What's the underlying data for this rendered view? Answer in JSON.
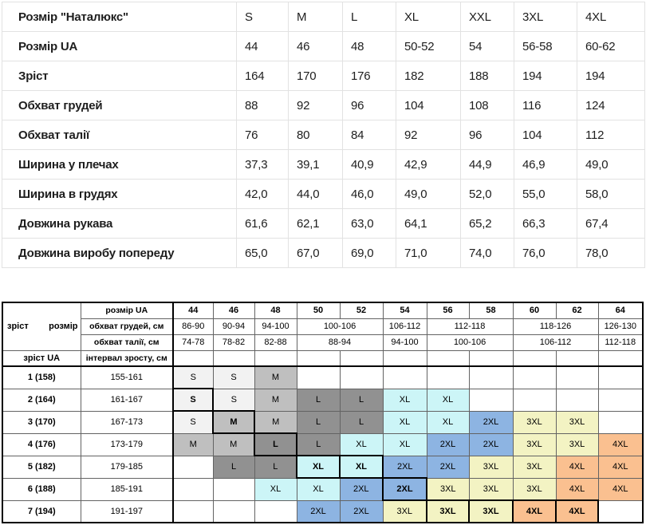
{
  "measurements_table": {
    "rows": [
      {
        "label": "Розмір \"Наталюкс\"",
        "values": [
          "S",
          "M",
          "L",
          "XL",
          "XXL",
          "3XL",
          "4XL"
        ]
      },
      {
        "label": "Розмір UA",
        "values": [
          "44",
          "46",
          "48",
          "50-52",
          "54",
          "56-58",
          "60-62"
        ]
      },
      {
        "label": "Зріст",
        "values": [
          "164",
          "170",
          "176",
          "182",
          "188",
          "194",
          "194"
        ]
      },
      {
        "label": "Обхват грудей",
        "values": [
          "88",
          "92",
          "96",
          "104",
          "108",
          "116",
          "124"
        ]
      },
      {
        "label": "Обхват талії",
        "values": [
          "76",
          "80",
          "84",
          "92",
          "96",
          "104",
          "112"
        ]
      },
      {
        "label": "Ширина у плечах",
        "values": [
          "37,3",
          "39,1",
          "40,9",
          "42,9",
          "44,9",
          "46,9",
          "49,0"
        ]
      },
      {
        "label": "Ширина в грудях",
        "values": [
          "42,0",
          "44,0",
          "46,0",
          "49,0",
          "52,0",
          "55,0",
          "58,0"
        ]
      },
      {
        "label": "Довжина рукава",
        "values": [
          "61,6",
          "62,1",
          "63,0",
          "64,1",
          "65,2",
          "66,3",
          "67,4"
        ]
      },
      {
        "label": "Довжина виробу попереду",
        "values": [
          "65,0",
          "67,0",
          "69,0",
          "71,0",
          "74,0",
          "76,0",
          "78,0"
        ]
      }
    ]
  },
  "size_chart": {
    "corner": {
      "height_label": "зріст",
      "size_label": "розмір"
    },
    "header": {
      "size_row_label": "розмір UA",
      "sizes": [
        "44",
        "46",
        "48",
        "50",
        "52",
        "54",
        "56",
        "58",
        "60",
        "62",
        "64"
      ],
      "chest_label": "обхват грудей, см",
      "chest_ranges": [
        "86-90",
        "90-94",
        "94-100",
        "100-106",
        "106-112",
        "112-118",
        "118-126",
        "126-130"
      ],
      "chest_spans": [
        1,
        1,
        1,
        2,
        1,
        2,
        2,
        1
      ],
      "waist_label": "обхват талії, см",
      "waist_ranges": [
        "74-78",
        "78-82",
        "82-88",
        "88-94",
        "94-100",
        "100-106",
        "106-112",
        "112-118"
      ],
      "waist_spans": [
        1,
        1,
        1,
        2,
        1,
        2,
        2,
        1
      ],
      "height_col_label": "зріст UA",
      "interval_col_label": "інтервал зросту, см"
    },
    "rows": [
      {
        "height": "1 (158)",
        "interval": "155-161",
        "cells": [
          "S",
          "S",
          "M",
          "",
          "",
          "",
          "",
          "",
          "",
          "",
          ""
        ],
        "key_cells": []
      },
      {
        "height": "2 (164)",
        "interval": "161-167",
        "cells": [
          "S",
          "S",
          "M",
          "L",
          "L",
          "XL",
          "XL",
          "",
          "",
          "",
          ""
        ],
        "key_cells": [
          0
        ]
      },
      {
        "height": "3 (170)",
        "interval": "167-173",
        "cells": [
          "S",
          "M",
          "M",
          "L",
          "L",
          "XL",
          "XL",
          "2XL",
          "3XL",
          "3XL",
          ""
        ],
        "key_cells": [
          1
        ]
      },
      {
        "height": "4 (176)",
        "interval": "173-179",
        "cells": [
          "M",
          "M",
          "L",
          "L",
          "XL",
          "XL",
          "2XL",
          "2XL",
          "3XL",
          "3XL",
          "4XL"
        ],
        "key_cells": [
          2
        ]
      },
      {
        "height": "5 (182)",
        "interval": "179-185",
        "cells": [
          "",
          "L",
          "L",
          "XL",
          "XL",
          "2XL",
          "2XL",
          "3XL",
          "3XL",
          "4XL",
          "4XL"
        ],
        "key_cells": [
          3,
          4
        ]
      },
      {
        "height": "6 (188)",
        "interval": "185-191",
        "cells": [
          "",
          "",
          "XL",
          "XL",
          "2XL",
          "2XL",
          "3XL",
          "3XL",
          "3XL",
          "4XL",
          "4XL"
        ],
        "key_cells": [
          5
        ]
      },
      {
        "height": "7 (194)",
        "interval": "191-197",
        "cells": [
          "",
          "",
          "",
          "2XL",
          "2XL",
          "3XL",
          "3XL",
          "3XL",
          "4XL",
          "4XL",
          ""
        ],
        "key_cells": [
          6,
          7,
          8,
          9
        ]
      }
    ],
    "size_colors": {
      "S": "#f2f2f2",
      "M": "#bfbfbf",
      "L": "#919191",
      "XL": "#ccf5f7",
      "2XL": "#8db4e2",
      "3XL": "#f3f3c3",
      "4XL": "#fac090"
    }
  }
}
